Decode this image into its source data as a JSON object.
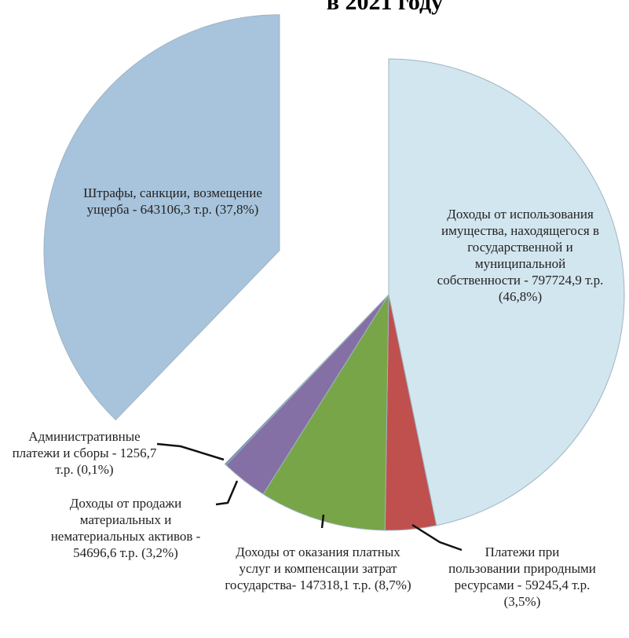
{
  "chart_data": {
    "type": "pie",
    "title": "в 2021 году",
    "categories": [
      "Доходы от использования имущества, находящегося в государственной и муниципальной собственности - 797724,9 т.р. (46,8%)",
      "Платежи при пользовании природными ресурсами - 59245,4 т.р. (3,5%)",
      "Доходы от оказания платных услуг и компенсации затрат государства- 147318,1 т.р. (8,7%)",
      "Доходы от продажи материальных и нематериальных активов - 54696,6 т.р. (3,2%)",
      "Административные платежи и сборы - 1256,7 т.р. (0,1%)",
      "Штрафы, санкции, возмещение ущерба - 643106,3 т.р. (37,8%)"
    ],
    "values": [
      46.8,
      3.5,
      8.7,
      3.2,
      0.1,
      37.8
    ],
    "colors": [
      "#d2e6ef",
      "#c0504d",
      "#78a548",
      "#8470a4",
      "#4f6fa0",
      "#a8c4dc"
    ],
    "exploded": 5
  }
}
